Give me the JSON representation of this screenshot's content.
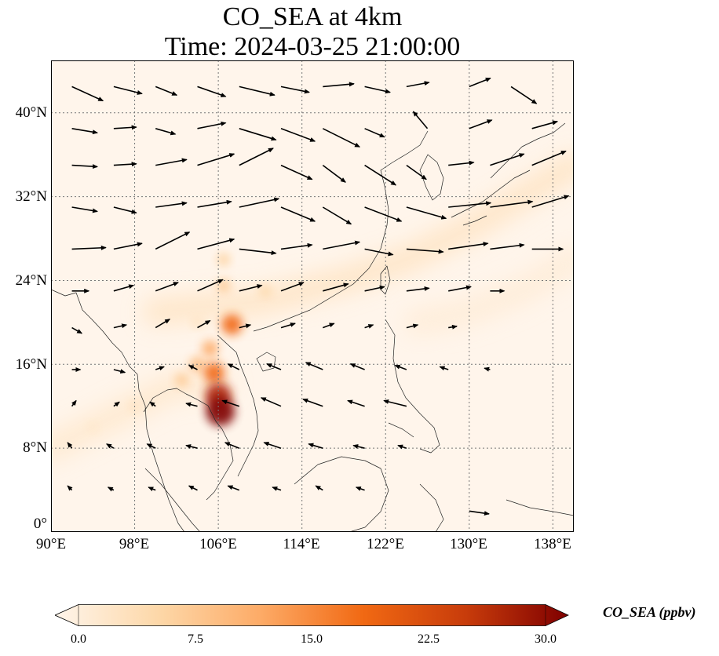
{
  "title": {
    "line1": "CO_SEA at 4km",
    "line2": "Time: 2024-03-25 21:00:00"
  },
  "map": {
    "lon_range": [
      90,
      140
    ],
    "lat_range": [
      0,
      45
    ],
    "lon_ticks": [
      "90°E",
      "98°E",
      "106°E",
      "114°E",
      "122°E",
      "130°E",
      "138°E"
    ],
    "lat_ticks": [
      "0°",
      "8°N",
      "16°N",
      "24°N",
      "32°N",
      "40°N"
    ],
    "grid": true
  },
  "colorbar": {
    "label": "CO_SEA (ppbv)",
    "ticks": [
      "0.0",
      "7.5",
      "15.0",
      "22.5",
      "30.0"
    ],
    "range": [
      0,
      30
    ],
    "colormap": "OrRd",
    "colors": [
      "#fff5eb",
      "#fdd8a9",
      "#fdab67",
      "#f16913",
      "#c83c0b",
      "#7f0000"
    ]
  },
  "plumes": [
    {
      "lon": 106.2,
      "lat": 11.5,
      "value": 30
    },
    {
      "lon": 106.0,
      "lat": 13.0,
      "value": 26
    },
    {
      "lon": 105.6,
      "lat": 15.2,
      "value": 18
    },
    {
      "lon": 107.3,
      "lat": 19.8,
      "value": 18
    },
    {
      "lon": 105.2,
      "lat": 17.5,
      "value": 12
    },
    {
      "lon": 104.0,
      "lat": 16.0,
      "value": 10
    },
    {
      "lon": 102.5,
      "lat": 14.5,
      "value": 8
    },
    {
      "lon": 106.5,
      "lat": 23.5,
      "value": 8
    },
    {
      "lon": 106.5,
      "lat": 26.0,
      "value": 7
    },
    {
      "lon": 110.5,
      "lat": 23.0,
      "value": 6
    },
    {
      "lon": 98.0,
      "lat": 12.0,
      "value": 4
    },
    {
      "lon": 94.0,
      "lat": 10.0,
      "value": 3
    },
    {
      "lon": 104.0,
      "lat": 20.0,
      "value": 4
    }
  ],
  "bands": [
    {
      "points": [
        [
          100,
          21
        ],
        [
          110,
          22
        ],
        [
          118,
          24
        ],
        [
          124,
          26
        ],
        [
          130,
          29
        ],
        [
          140,
          35
        ]
      ],
      "value": 4
    },
    {
      "points": [
        [
          125,
          20
        ],
        [
          130,
          21
        ],
        [
          135,
          23
        ],
        [
          140,
          26
        ]
      ],
      "value": 2
    },
    {
      "points": [
        [
          90,
          8
        ],
        [
          96,
          11
        ],
        [
          102,
          14
        ],
        [
          106,
          14
        ]
      ],
      "value": 3
    }
  ],
  "wind_vectors": [
    {
      "lon": 92,
      "lat": 42.5,
      "u": 2.2,
      "v": -1.0
    },
    {
      "lon": 96,
      "lat": 42.5,
      "u": 2.0,
      "v": -0.5
    },
    {
      "lon": 100,
      "lat": 42.5,
      "u": 1.5,
      "v": -0.6
    },
    {
      "lon": 104,
      "lat": 42.5,
      "u": 2.0,
      "v": -0.7
    },
    {
      "lon": 108,
      "lat": 42.5,
      "u": 2.5,
      "v": -0.6
    },
    {
      "lon": 112,
      "lat": 42.5,
      "u": 2.0,
      "v": -0.4
    },
    {
      "lon": 116,
      "lat": 42.5,
      "u": 2.2,
      "v": 0.2
    },
    {
      "lon": 120,
      "lat": 42.5,
      "u": 1.8,
      "v": -0.4
    },
    {
      "lon": 124,
      "lat": 42.5,
      "u": 1.6,
      "v": 0.3
    },
    {
      "lon": 130,
      "lat": 42.5,
      "u": 1.5,
      "v": 0.6
    },
    {
      "lon": 134,
      "lat": 42.5,
      "u": 1.8,
      "v": -1.2
    },
    {
      "lon": 92,
      "lat": 38.5,
      "u": 1.8,
      "v": -0.3
    },
    {
      "lon": 96,
      "lat": 38.5,
      "u": 1.6,
      "v": 0.1
    },
    {
      "lon": 100,
      "lat": 38.5,
      "u": 1.4,
      "v": -0.4
    },
    {
      "lon": 104,
      "lat": 38.5,
      "u": 2.0,
      "v": 0.4
    },
    {
      "lon": 108,
      "lat": 38.5,
      "u": 2.6,
      "v": -0.8
    },
    {
      "lon": 112,
      "lat": 38.5,
      "u": 2.4,
      "v": -0.9
    },
    {
      "lon": 116,
      "lat": 38.5,
      "u": 2.6,
      "v": -1.3
    },
    {
      "lon": 120,
      "lat": 38.5,
      "u": 1.4,
      "v": -0.6
    },
    {
      "lon": 126,
      "lat": 38.5,
      "u": -1.0,
      "v": 1.2
    },
    {
      "lon": 130,
      "lat": 38.5,
      "u": 1.6,
      "v": 0.6
    },
    {
      "lon": 136,
      "lat": 38.5,
      "u": 1.8,
      "v": 0.5
    },
    {
      "lon": 92,
      "lat": 35,
      "u": 1.8,
      "v": -0.1
    },
    {
      "lon": 96,
      "lat": 35,
      "u": 1.6,
      "v": 0.1
    },
    {
      "lon": 100,
      "lat": 35,
      "u": 2.2,
      "v": 0.4
    },
    {
      "lon": 104,
      "lat": 35,
      "u": 2.6,
      "v": 0.8
    },
    {
      "lon": 108,
      "lat": 35,
      "u": 2.4,
      "v": 1.2
    },
    {
      "lon": 112,
      "lat": 35,
      "u": 2.2,
      "v": -1.0
    },
    {
      "lon": 116,
      "lat": 35,
      "u": 1.6,
      "v": -1.2
    },
    {
      "lon": 120,
      "lat": 35,
      "u": 2.2,
      "v": -1.4
    },
    {
      "lon": 124,
      "lat": 35,
      "u": 1.4,
      "v": -1.0
    },
    {
      "lon": 128,
      "lat": 35,
      "u": 1.8,
      "v": 0.2
    },
    {
      "lon": 132,
      "lat": 35,
      "u": 2.4,
      "v": 0.8
    },
    {
      "lon": 136,
      "lat": 35,
      "u": 2.4,
      "v": 1.0
    },
    {
      "lon": 92,
      "lat": 31,
      "u": 1.8,
      "v": -0.3
    },
    {
      "lon": 96,
      "lat": 31,
      "u": 1.6,
      "v": -0.4
    },
    {
      "lon": 100,
      "lat": 31,
      "u": 2.2,
      "v": 0.3
    },
    {
      "lon": 104,
      "lat": 31,
      "u": 2.4,
      "v": 0.4
    },
    {
      "lon": 108,
      "lat": 31,
      "u": 2.8,
      "v": 0.6
    },
    {
      "lon": 112,
      "lat": 31,
      "u": 2.4,
      "v": -1.0
    },
    {
      "lon": 116,
      "lat": 31,
      "u": 2.0,
      "v": -1.2
    },
    {
      "lon": 120,
      "lat": 31,
      "u": 2.6,
      "v": -1.0
    },
    {
      "lon": 124,
      "lat": 31,
      "u": 2.8,
      "v": -0.8
    },
    {
      "lon": 128,
      "lat": 31,
      "u": 3.0,
      "v": 0.3
    },
    {
      "lon": 132,
      "lat": 31,
      "u": 3.0,
      "v": 0.4
    },
    {
      "lon": 136,
      "lat": 31,
      "u": 2.6,
      "v": 0.8
    },
    {
      "lon": 92,
      "lat": 27,
      "u": 2.4,
      "v": 0.1
    },
    {
      "lon": 96,
      "lat": 27,
      "u": 2.0,
      "v": 0.4
    },
    {
      "lon": 100,
      "lat": 27,
      "u": 2.4,
      "v": 1.2
    },
    {
      "lon": 104,
      "lat": 27,
      "u": 2.6,
      "v": 0.7
    },
    {
      "lon": 108,
      "lat": 27,
      "u": 2.6,
      "v": -0.3
    },
    {
      "lon": 112,
      "lat": 27,
      "u": 2.2,
      "v": 0.3
    },
    {
      "lon": 116,
      "lat": 27,
      "u": 2.6,
      "v": 0.5
    },
    {
      "lon": 120,
      "lat": 27,
      "u": 2.0,
      "v": -0.4
    },
    {
      "lon": 124,
      "lat": 27,
      "u": 2.6,
      "v": -0.2
    },
    {
      "lon": 128,
      "lat": 27,
      "u": 2.8,
      "v": 0.4
    },
    {
      "lon": 132,
      "lat": 27,
      "u": 2.4,
      "v": 0.3
    },
    {
      "lon": 136,
      "lat": 27,
      "u": 2.2,
      "v": 0.0
    },
    {
      "lon": 92,
      "lat": 23,
      "u": 1.2,
      "v": 0.0
    },
    {
      "lon": 96,
      "lat": 23,
      "u": 1.4,
      "v": 0.4
    },
    {
      "lon": 100,
      "lat": 23,
      "u": 1.6,
      "v": 0.6
    },
    {
      "lon": 104,
      "lat": 23,
      "u": 1.8,
      "v": 0.8
    },
    {
      "lon": 108,
      "lat": 23,
      "u": 1.6,
      "v": 0.4
    },
    {
      "lon": 112,
      "lat": 23,
      "u": 1.6,
      "v": 0.6
    },
    {
      "lon": 116,
      "lat": 23,
      "u": 1.8,
      "v": 0.5
    },
    {
      "lon": 120,
      "lat": 23,
      "u": 1.4,
      "v": 0.3
    },
    {
      "lon": 124,
      "lat": 23,
      "u": 1.6,
      "v": 0.2
    },
    {
      "lon": 128,
      "lat": 23,
      "u": 1.6,
      "v": 0.3
    },
    {
      "lon": 132,
      "lat": 23,
      "u": 1.0,
      "v": 0.0
    },
    {
      "lon": 92,
      "lat": 19.5,
      "u": 0.7,
      "v": -0.4
    },
    {
      "lon": 96,
      "lat": 19.5,
      "u": 0.9,
      "v": 0.2
    },
    {
      "lon": 100,
      "lat": 19.5,
      "u": 1.0,
      "v": 0.6
    },
    {
      "lon": 104,
      "lat": 19.5,
      "u": 0.9,
      "v": 0.5
    },
    {
      "lon": 108,
      "lat": 19.5,
      "u": 0.8,
      "v": 0.2
    },
    {
      "lon": 112,
      "lat": 19.5,
      "u": 1.0,
      "v": 0.3
    },
    {
      "lon": 116,
      "lat": 19.5,
      "u": 0.8,
      "v": 0.3
    },
    {
      "lon": 120,
      "lat": 19.5,
      "u": 0.6,
      "v": 0.2
    },
    {
      "lon": 124,
      "lat": 19.5,
      "u": 0.8,
      "v": 0.2
    },
    {
      "lon": 128,
      "lat": 19.5,
      "u": 0.6,
      "v": 0.1
    },
    {
      "lon": 92,
      "lat": 15.5,
      "u": 0.6,
      "v": 0.0
    },
    {
      "lon": 96,
      "lat": 15.5,
      "u": 0.8,
      "v": -0.2
    },
    {
      "lon": 100,
      "lat": 15.5,
      "u": 0.6,
      "v": 0.2
    },
    {
      "lon": 104,
      "lat": 15.5,
      "u": -0.6,
      "v": 0.3
    },
    {
      "lon": 108,
      "lat": 15.5,
      "u": -0.8,
      "v": 0.4
    },
    {
      "lon": 112,
      "lat": 15.5,
      "u": -1.0,
      "v": 0.4
    },
    {
      "lon": 116,
      "lat": 15.5,
      "u": -1.2,
      "v": 0.5
    },
    {
      "lon": 120,
      "lat": 15.5,
      "u": -1.0,
      "v": 0.4
    },
    {
      "lon": 124,
      "lat": 15.5,
      "u": -0.8,
      "v": 0.3
    },
    {
      "lon": 128,
      "lat": 15.5,
      "u": -0.6,
      "v": 0.2
    },
    {
      "lon": 132,
      "lat": 15.5,
      "u": -0.4,
      "v": 0.1
    },
    {
      "lon": 92,
      "lat": 12,
      "u": 0.3,
      "v": 0.4
    },
    {
      "lon": 96,
      "lat": 12,
      "u": 0.4,
      "v": 0.3
    },
    {
      "lon": 100,
      "lat": 12,
      "u": -0.4,
      "v": 0.3
    },
    {
      "lon": 104,
      "lat": 12,
      "u": -0.8,
      "v": 0.2
    },
    {
      "lon": 108,
      "lat": 12,
      "u": -1.2,
      "v": 0.4
    },
    {
      "lon": 112,
      "lat": 12,
      "u": -1.4,
      "v": 0.6
    },
    {
      "lon": 116,
      "lat": 12,
      "u": -1.4,
      "v": 0.5
    },
    {
      "lon": 120,
      "lat": 12,
      "u": -1.2,
      "v": 0.4
    },
    {
      "lon": 124,
      "lat": 12,
      "u": -1.6,
      "v": 0.4
    },
    {
      "lon": 92,
      "lat": 8,
      "u": -0.3,
      "v": 0.4
    },
    {
      "lon": 96,
      "lat": 8,
      "u": -0.5,
      "v": 0.3
    },
    {
      "lon": 100,
      "lat": 8,
      "u": -0.6,
      "v": 0.3
    },
    {
      "lon": 104,
      "lat": 8,
      "u": -0.8,
      "v": 0.2
    },
    {
      "lon": 108,
      "lat": 8,
      "u": -1.0,
      "v": 0.4
    },
    {
      "lon": 112,
      "lat": 8,
      "u": -1.2,
      "v": 0.4
    },
    {
      "lon": 116,
      "lat": 8,
      "u": -1.0,
      "v": 0.3
    },
    {
      "lon": 120,
      "lat": 8,
      "u": -0.8,
      "v": 0.2
    },
    {
      "lon": 124,
      "lat": 8,
      "u": -0.6,
      "v": 0.2
    },
    {
      "lon": 92,
      "lat": 4,
      "u": -0.3,
      "v": 0.3
    },
    {
      "lon": 96,
      "lat": 4,
      "u": -0.4,
      "v": 0.2
    },
    {
      "lon": 100,
      "lat": 4,
      "u": -0.5,
      "v": 0.2
    },
    {
      "lon": 104,
      "lat": 4,
      "u": -0.6,
      "v": 0.3
    },
    {
      "lon": 108,
      "lat": 4,
      "u": -0.8,
      "v": 0.3
    },
    {
      "lon": 112,
      "lat": 4,
      "u": -0.6,
      "v": 0.2
    },
    {
      "lon": 116,
      "lat": 4,
      "u": -0.5,
      "v": 0.3
    },
    {
      "lon": 120,
      "lat": 4,
      "u": -0.6,
      "v": 0.2
    },
    {
      "lon": 130,
      "lat": 2,
      "u": 1.4,
      "v": -0.2
    }
  ]
}
